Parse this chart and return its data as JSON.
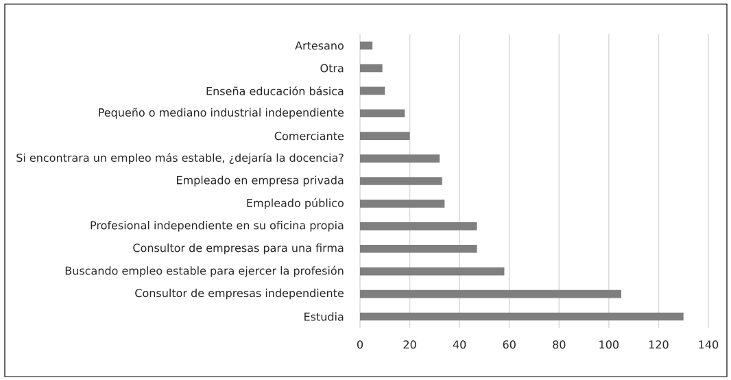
{
  "chart_data": {
    "type": "bar",
    "orientation": "horizontal",
    "categories": [
      "Artesano",
      "Otra",
      "Enseña educación básica",
      "Pequeño o mediano industrial independiente",
      "Comerciante",
      "Si encontrara un empleo más estable, ¿dejaría la docencia?",
      "Empleado en empresa privada",
      "Empleado público",
      "Profesional independiente en su oficina propia",
      "Consultor de empresas para una firma",
      "Buscando empleo estable para ejercer la profesión",
      "Consultor de empresas independiente",
      "Estudia"
    ],
    "values": [
      5,
      9,
      10,
      18,
      20,
      32,
      33,
      34,
      47,
      47,
      58,
      105,
      130
    ],
    "color": "#7f7f7f",
    "xlim": [
      0,
      140
    ],
    "xticks": [
      0,
      20,
      40,
      60,
      80,
      100,
      120,
      140
    ],
    "grid": "x"
  }
}
